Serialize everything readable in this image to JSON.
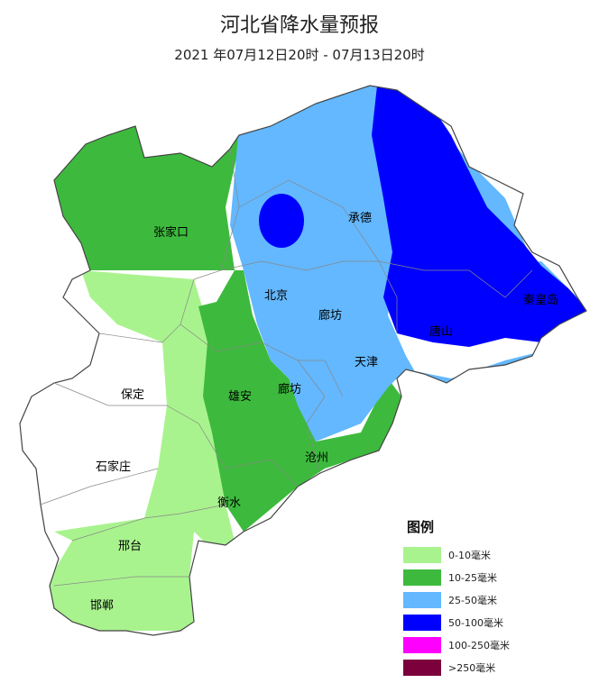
{
  "title": "河北省降水量预报",
  "subtitle": "2021 年07月12日20时 - 07月13日20时",
  "map": {
    "cities": [
      "张家口",
      "承德",
      "北京",
      "廊坊",
      "天津",
      "秦皇岛",
      "唐山",
      "保定",
      "雄安",
      "廊坊",
      "沧州",
      "石家庄",
      "衡水",
      "邢台",
      "邯郸"
    ]
  },
  "legend": {
    "title": "图例",
    "items": [
      {
        "label": "0-10毫米",
        "color": "#a9f38e"
      },
      {
        "label": "10-25毫米",
        "color": "#3dba3d"
      },
      {
        "label": "25-50毫米",
        "color": "#63b8ff"
      },
      {
        "label": "50-100毫米",
        "color": "#0000fe"
      },
      {
        "label": "100-250毫米",
        "color": "#fe00fe"
      },
      {
        "label": ">250毫米",
        "color": "#7b003c"
      }
    ]
  }
}
